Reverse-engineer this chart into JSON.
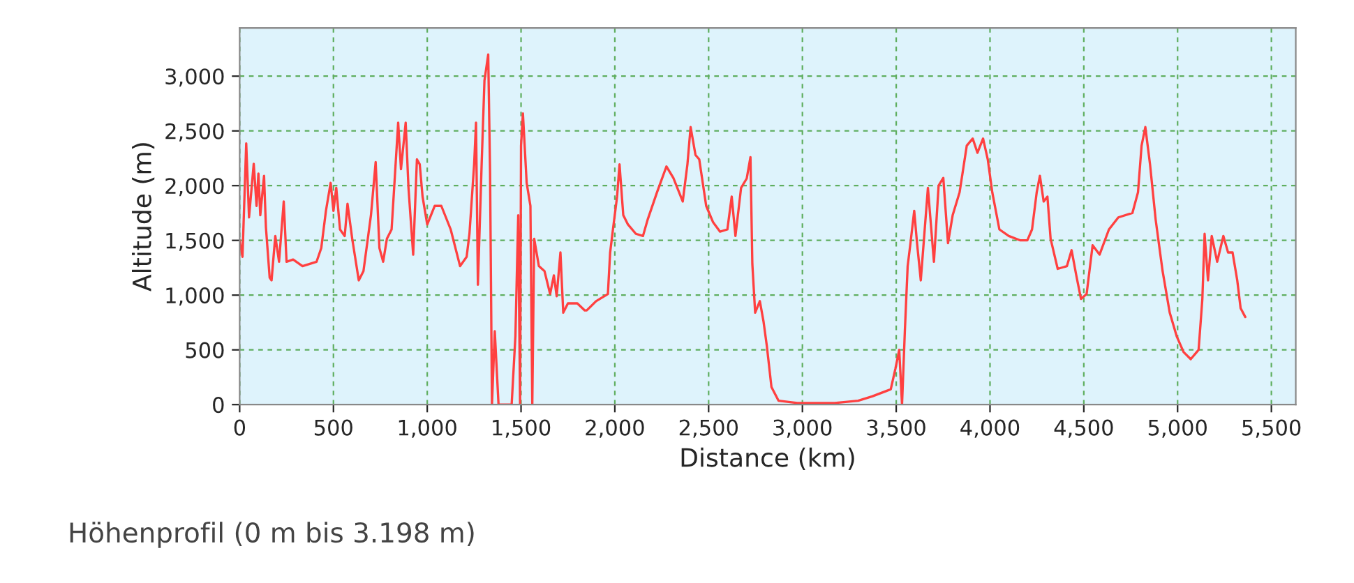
{
  "chart_data": {
    "type": "line",
    "xlabel": "Distance (km)",
    "ylabel": "Altitude (m)",
    "annotations": [
      "Höhenprofil (0 m bis 3.198 m)"
    ],
    "xlim": [
      0,
      5630
    ],
    "ylim": [
      0,
      3440
    ],
    "xticks": [
      0,
      500,
      {
        "value": 1000,
        "label": "1,000"
      },
      {
        "value": 1500,
        "label": "1,500"
      },
      {
        "value": 2000,
        "label": "2,000"
      },
      {
        "value": 2500,
        "label": "2,500"
      },
      {
        "value": 3000,
        "label": "3,000"
      },
      {
        "value": 3500,
        "label": "3,500"
      },
      {
        "value": 4000,
        "label": "4,000"
      },
      {
        "value": 4500,
        "label": "4,500"
      },
      {
        "value": 5000,
        "label": "5,000"
      },
      {
        "value": 5500,
        "label": "5,500"
      }
    ],
    "yticks": [
      0,
      500,
      {
        "value": 1000,
        "label": "1,000"
      },
      {
        "value": 1500,
        "label": "1,500"
      },
      {
        "value": 2000,
        "label": "2,000"
      },
      {
        "value": 2500,
        "label": "2,500"
      },
      {
        "value": 3000,
        "label": "3,000"
      }
    ],
    "grid": true,
    "legend": false,
    "line_style": "solid",
    "marker": "none",
    "series": [
      {
        "color": "#ff4040",
        "x": [
          0,
          15,
          35,
          50,
          75,
          90,
          100,
          110,
          130,
          140,
          160,
          170,
          190,
          210,
          235,
          250,
          285,
          335,
          410,
          435,
          460,
          485,
          500,
          515,
          535,
          560,
          575,
          600,
          635,
          660,
          700,
          725,
          745,
          765,
          785,
          810,
          845,
          860,
          885,
          900,
          925,
          945,
          960,
          975,
          1000,
          1040,
          1075,
          1125,
          1175,
          1210,
          1225,
          1250,
          1260,
          1270,
          1290,
          1305,
          1325,
          1335,
          1345,
          1360,
          1380,
          1450,
          1470,
          1485,
          1495,
          1500,
          1510,
          1530,
          1550,
          1560,
          1570,
          1595,
          1625,
          1655,
          1675,
          1690,
          1710,
          1725,
          1750,
          1800,
          1840,
          1850,
          1900,
          1963,
          1975,
          1990,
          2012,
          2025,
          2045,
          2070,
          2112,
          2150,
          2175,
          2225,
          2275,
          2312,
          2362,
          2387,
          2404,
          2430,
          2450,
          2487,
          2524,
          2561,
          2600,
          2623,
          2643,
          2673,
          2703,
          2723,
          2733,
          2748,
          2773,
          2793,
          2810,
          2835,
          2873,
          2973,
          3172,
          3297,
          3372,
          3471,
          3496,
          3516,
          3531,
          3546,
          3561,
          3576,
          3596,
          3611,
          3631,
          3669,
          3701,
          3726,
          3751,
          3776,
          3801,
          3838,
          3876,
          3908,
          3933,
          3963,
          3988,
          4012,
          4050,
          4100,
          4162,
          4199,
          4224,
          4249,
          4266,
          4286,
          4306,
          4323,
          4361,
          4410,
          4435,
          4460,
          4485,
          4515,
          4547,
          4584,
          4634,
          4684,
          4759,
          4789,
          4808,
          4828,
          4853,
          4883,
          4920,
          4958,
          4995,
          5032,
          5070,
          5112,
          5132,
          5144,
          5162,
          5182,
          5211,
          5244,
          5269,
          5293,
          5318,
          5336,
          5361
        ],
        "values": [
          1500,
          1350,
          2385,
          1710,
          2200,
          1815,
          2110,
          1730,
          2090,
          1620,
          1160,
          1135,
          1540,
          1305,
          1855,
          1305,
          1325,
          1265,
          1305,
          1430,
          1770,
          2025,
          1770,
          1980,
          1600,
          1540,
          1835,
          1515,
          1135,
          1220,
          1730,
          2215,
          1430,
          1305,
          1515,
          1600,
          2575,
          2150,
          2575,
          1980,
          1370,
          2240,
          2195,
          1900,
          1645,
          1815,
          1815,
          1600,
          1265,
          1350,
          1560,
          2195,
          2575,
          1095,
          2195,
          2960,
          3198,
          2110,
          0,
          670,
          0,
          0,
          625,
          1730,
          0,
          2365,
          2660,
          2025,
          1815,
          0,
          1515,
          1265,
          1220,
          1010,
          1180,
          990,
          1390,
          840,
          925,
          925,
          860,
          860,
          945,
          1010,
          1390,
          1600,
          1900,
          2195,
          1730,
          1645,
          1560,
          1540,
          1690,
          1940,
          2175,
          2070,
          1855,
          2195,
          2535,
          2280,
          2240,
          1815,
          1665,
          1580,
          1600,
          1900,
          1540,
          1980,
          2065,
          2260,
          1285,
          840,
          945,
          755,
          540,
          160,
          35,
          15,
          15,
          35,
          75,
          140,
          330,
          500,
          0,
          670,
          1265,
          1475,
          1770,
          1475,
          1135,
          1980,
          1305,
          2000,
          2070,
          1475,
          1730,
          1940,
          2365,
          2430,
          2300,
          2430,
          2240,
          1940,
          1600,
          1540,
          1500,
          1500,
          1600,
          1940,
          2090,
          1855,
          1900,
          1515,
          1240,
          1265,
          1410,
          1180,
          965,
          1010,
          1455,
          1370,
          1600,
          1710,
          1750,
          1940,
          2365,
          2535,
          2195,
          1690,
          1220,
          840,
          625,
          480,
          415,
          500,
          965,
          1560,
          1135,
          1540,
          1305,
          1540,
          1390,
          1390,
          1135,
          880,
          800
        ]
      }
    ]
  }
}
